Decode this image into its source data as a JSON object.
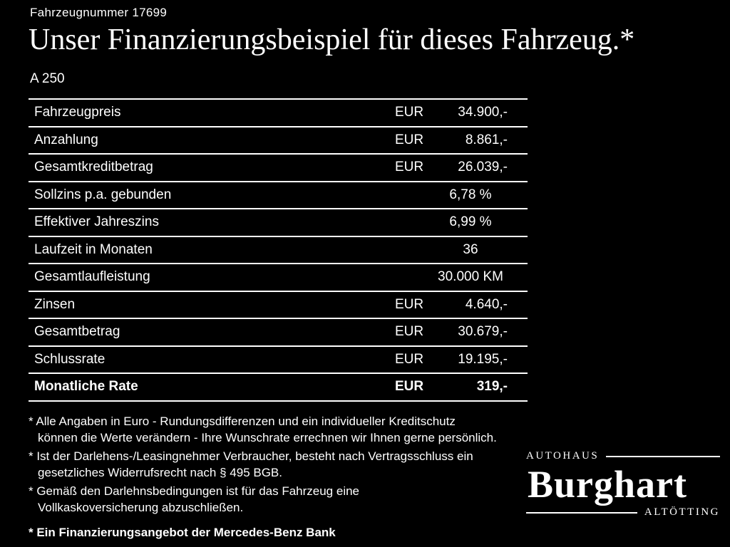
{
  "page": {
    "vehicle_number": "Fahrzeugnummer 17699",
    "title": "Unser Finanzierungsbeispiel für dieses Fahrzeug.*",
    "model": "A 250"
  },
  "table": {
    "rows": [
      {
        "label": "Fahrzeugpreis",
        "currency": "EUR",
        "value": "34.900,-",
        "bold": false
      },
      {
        "label": "Anzahlung",
        "currency": "EUR",
        "value": "8.861,-",
        "bold": false
      },
      {
        "label": "Gesamtkreditbetrag",
        "currency": "EUR",
        "value": "26.039,-",
        "bold": false
      },
      {
        "label": "Sollzins p.a. gebunden",
        "currency": "",
        "value": "6,78 %",
        "bold": false
      },
      {
        "label": "Effektiver Jahreszins",
        "currency": "",
        "value": "6,99 %",
        "bold": false
      },
      {
        "label": "Laufzeit in Monaten",
        "currency": "",
        "value": "36",
        "bold": false
      },
      {
        "label": "Gesamtlaufleistung",
        "currency": "",
        "value": "30.000 KM",
        "bold": false
      },
      {
        "label": "Zinsen",
        "currency": "EUR",
        "value": "4.640,-",
        "bold": false
      },
      {
        "label": "Gesamtbetrag",
        "currency": "EUR",
        "value": "30.679,-",
        "bold": false
      },
      {
        "label": "Schlussrate",
        "currency": "EUR",
        "value": "19.195,-",
        "bold": false
      },
      {
        "label": "Monatliche Rate",
        "currency": "EUR",
        "value": "319,-",
        "bold": true
      }
    ]
  },
  "footnotes": {
    "marker": "*",
    "items": [
      {
        "text": "Alle Angaben in Euro - Rundungsdifferenzen und ein individueller Kreditschutz\nkönnen die Werte verändern - Ihre Wunschrate errechnen wir Ihnen gerne persönlich.",
        "bold": false
      },
      {
        "text": "Ist der Darlehens-/Leasingnehmer Verbraucher, besteht nach Vertragsschluss ein\ngesetzliches Widerrufsrecht nach § 495 BGB.",
        "bold": false
      },
      {
        "text": "Gemäß den Darlehnsbedingungen ist für das Fahrzeug eine\nVollkaskoversicherung abzuschließen.",
        "bold": false
      },
      {
        "text": "Ein Finanzierungsangebot der Mercedes-Benz Bank",
        "bold": true
      }
    ]
  },
  "logo": {
    "top": "AUTOHAUS",
    "name": "Burghart",
    "bottom": "ALTÖTTING"
  },
  "colors": {
    "background": "#000000",
    "text": "#ffffff",
    "line": "#ffffff"
  }
}
